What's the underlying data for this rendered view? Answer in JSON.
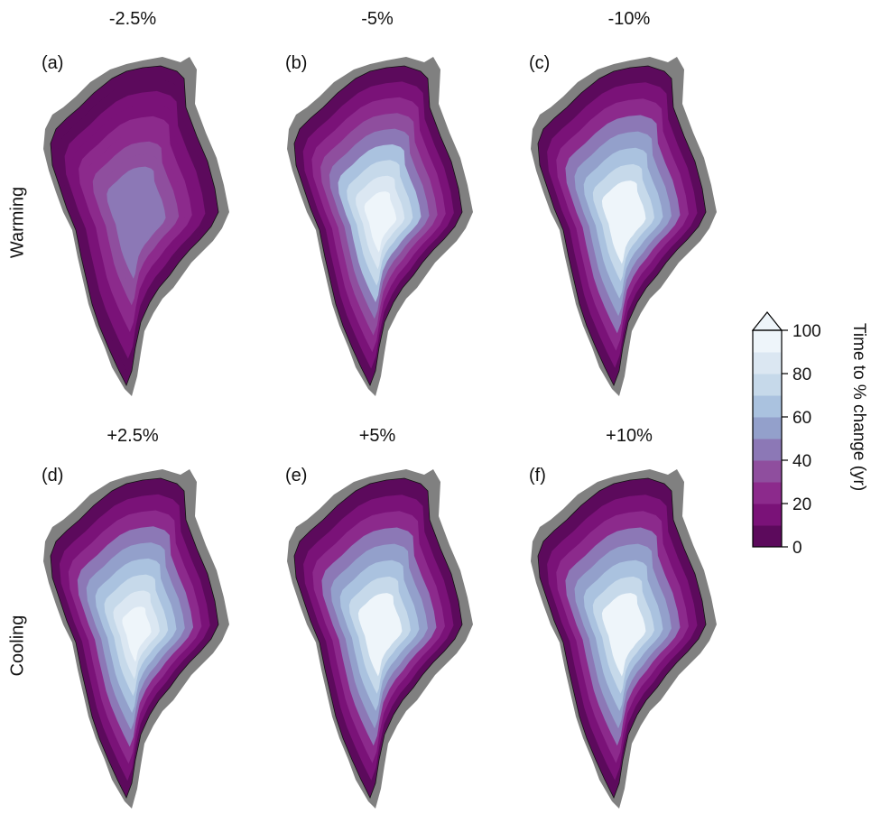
{
  "columns": [
    {
      "title": "-2.5%"
    },
    {
      "title": "-5%"
    },
    {
      "title": "-10%"
    }
  ],
  "rows": [
    {
      "label": "Warming"
    },
    {
      "label": "Cooling"
    }
  ],
  "panels": [
    {
      "letter": "(a)",
      "change": "-2.5%",
      "regime": "Warming",
      "interior_level": 0.45
    },
    {
      "letter": "(b)",
      "change": "-5%",
      "regime": "Warming",
      "interior_level": 0.9
    },
    {
      "letter": "(c)",
      "change": "-10%",
      "regime": "Warming",
      "interior_level": 1.0
    },
    {
      "letter": "(d)",
      "change": "+2.5%",
      "regime": "Cooling",
      "interior_level": 0.95
    },
    {
      "letter": "(e)",
      "change": "+5%",
      "regime": "Cooling",
      "interior_level": 1.0
    },
    {
      "letter": "(f)",
      "change": "+10%",
      "regime": "Cooling",
      "interior_level": 1.0
    }
  ],
  "bottom_titles": [
    "+2.5%",
    "+5%",
    "+10%"
  ],
  "colorbar": {
    "label": "Time to % change (yr)",
    "ticks": [
      "0",
      "20",
      "40",
      "60",
      "80",
      "100"
    ],
    "min": 0,
    "max": 100,
    "extend": "max",
    "colors": [
      "#5c0a5c",
      "#7a1278",
      "#8c2a8c",
      "#8f4e9e",
      "#8c78b6",
      "#93a0cb",
      "#aac2df",
      "#c6d9ea",
      "#dbe7f2",
      "#eef5fa"
    ]
  },
  "land_color": "#808080",
  "ocean_color": "#ffffff"
}
